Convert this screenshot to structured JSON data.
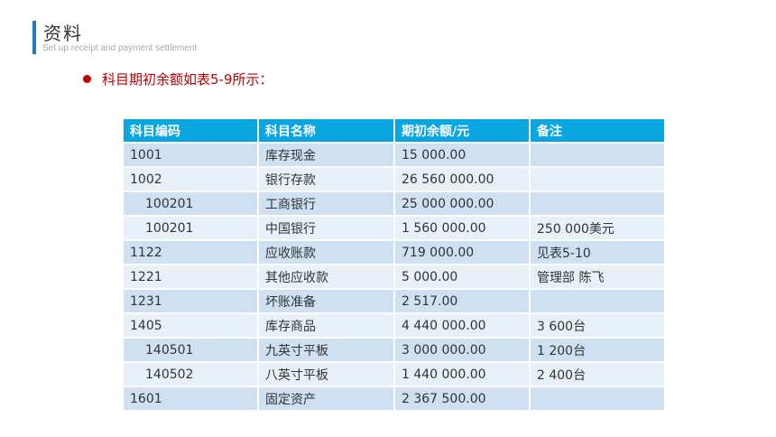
{
  "header": {
    "title": "资料",
    "subtitle": "Set up receipt and payment settlement"
  },
  "bullet": {
    "text": "科目期初余额如表5-9所示："
  },
  "colors": {
    "accent_bar": "#1f78c8",
    "bullet": "#c00000",
    "table_header": "#0aa6e2",
    "row_odd": "#cfe0f2",
    "row_even": "#e8f0f9"
  },
  "table": {
    "columns": [
      "科目编码",
      "科目名称",
      "期初余额/元",
      "备注"
    ],
    "rows": [
      {
        "code": "1001",
        "name": "库存现金",
        "balance": "15 000.00",
        "note": "",
        "sub": false
      },
      {
        "code": "1002",
        "name": "银行存款",
        "balance": "26 560 000.00",
        "note": "",
        "sub": false
      },
      {
        "code": "100201",
        "name": "工商银行",
        "balance": "25 000 000.00",
        "note": "",
        "sub": true
      },
      {
        "code": "100201",
        "name": "中国银行",
        "balance": "1 560 000.00",
        "note": "250 000美元",
        "sub": true
      },
      {
        "code": "1122",
        "name": "应收账款",
        "balance": "719 000.00",
        "note": "见表5-10",
        "sub": false
      },
      {
        "code": "1221",
        "name": "其他应收款",
        "balance": "5 000.00",
        "note": "管理部 陈飞",
        "sub": false
      },
      {
        "code": "1231",
        "name": "坏账准备",
        "balance": "2 517.00",
        "note": "",
        "sub": false
      },
      {
        "code": "1405",
        "name": "库存商品",
        "balance": "4 440 000.00",
        "note": "3 600台",
        "sub": false
      },
      {
        "code": "140501",
        "name": "九英寸平板",
        "balance": "3 000 000.00",
        "note": "1 200台",
        "sub": true
      },
      {
        "code": "140502",
        "name": "八英寸平板",
        "balance": "1 440 000.00",
        "note": "2 400台",
        "sub": true
      },
      {
        "code": "1601",
        "name": "固定资产",
        "balance": "2 367 500.00",
        "note": "",
        "sub": false
      }
    ]
  }
}
